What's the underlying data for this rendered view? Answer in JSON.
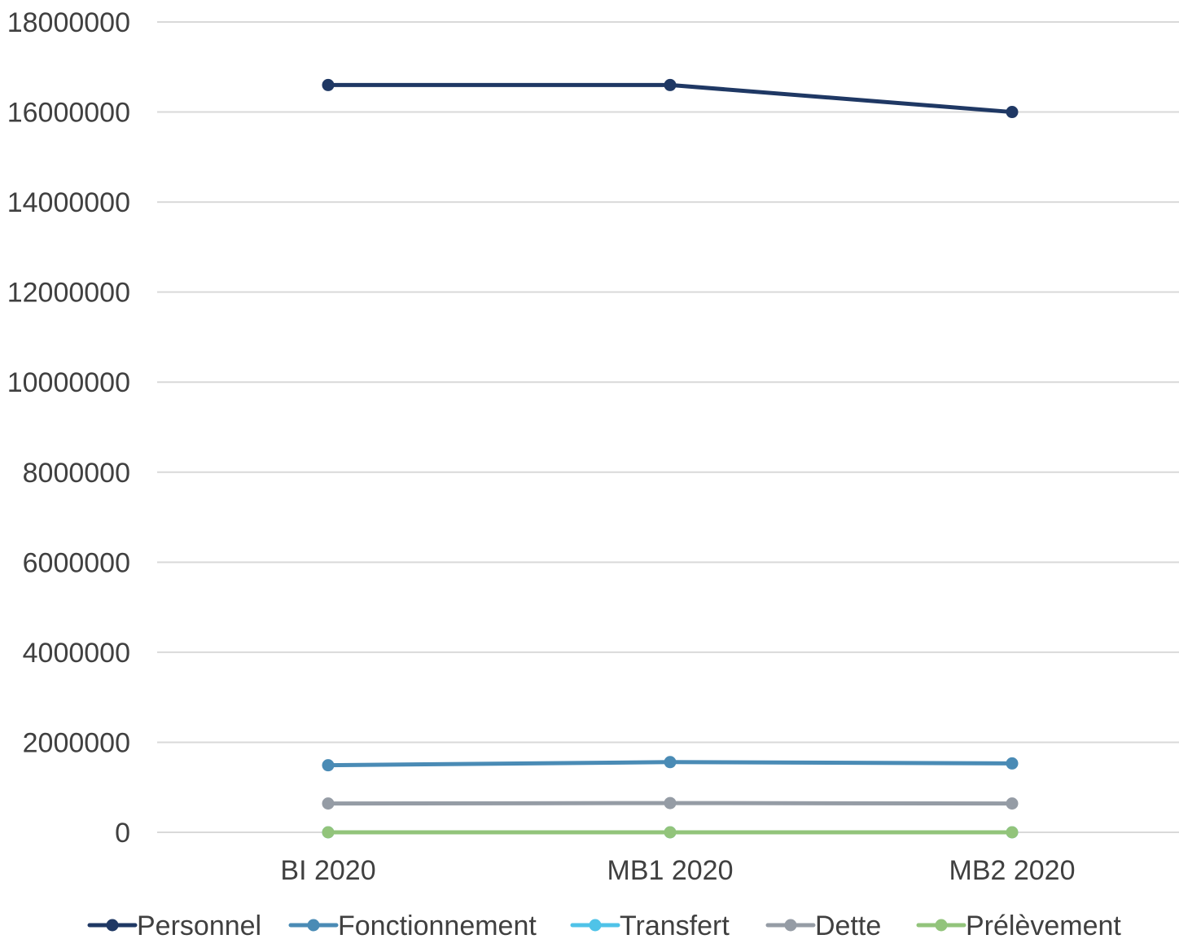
{
  "chart_data": {
    "type": "line",
    "categories": [
      "BI 2020",
      "MB1 2020",
      "MB2 2020"
    ],
    "ylim": [
      0,
      18000000
    ],
    "yticks": [
      0,
      2000000,
      4000000,
      6000000,
      8000000,
      10000000,
      12000000,
      14000000,
      16000000,
      18000000
    ],
    "ytick_labels": [
      "0",
      "2000000",
      "4000000",
      "6000000",
      "8000000",
      "10000000",
      "12000000",
      "14000000",
      "16000000",
      "18000000"
    ],
    "grid": true,
    "legend_position": "bottom",
    "series": [
      {
        "name": "Personnel",
        "color": "#1f3864",
        "values": [
          16600000,
          16600000,
          16000000
        ]
      },
      {
        "name": "Fonctionnement",
        "color": "#4a8bb5",
        "values": [
          1490000,
          1560000,
          1530000
        ]
      },
      {
        "name": "Transfert",
        "color": "#4fc3e8",
        "values": [
          0,
          0,
          0
        ]
      },
      {
        "name": "Dette",
        "color": "#959ca5",
        "values": [
          640000,
          650000,
          640000
        ]
      },
      {
        "name": "Prélèvement",
        "color": "#92c47b",
        "values": [
          0,
          0,
          0
        ]
      }
    ]
  }
}
